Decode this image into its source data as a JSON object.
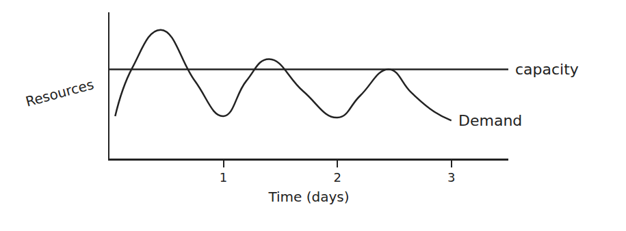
{
  "chart_data": {
    "type": "line",
    "x_label": "Time (days)",
    "y_label": "Resources",
    "xlim": [
      0,
      3.5
    ],
    "xticks": [
      1,
      2,
      3
    ],
    "ylim": [
      0,
      10
    ],
    "yticks": [],
    "tick_labels": "x",
    "grid": false,
    "series": [
      {
        "name": "capacity",
        "color": "#222222",
        "line_style": "solid",
        "x": [
          0,
          3.5
        ],
        "values": [
          6.1,
          6.1
        ]
      },
      {
        "name": "Demand",
        "color": "#222222",
        "line_style": "smooth",
        "x": [
          0.05,
          0.2,
          0.45,
          0.75,
          1.0,
          1.2,
          1.4,
          1.7,
          2.0,
          2.2,
          2.45,
          2.65,
          2.85,
          3.0
        ],
        "values": [
          2.9,
          6.2,
          8.8,
          5.3,
          2.9,
          5.3,
          6.8,
          4.6,
          2.8,
          4.3,
          6.1,
          4.5,
          3.2,
          2.6
        ]
      }
    ]
  }
}
